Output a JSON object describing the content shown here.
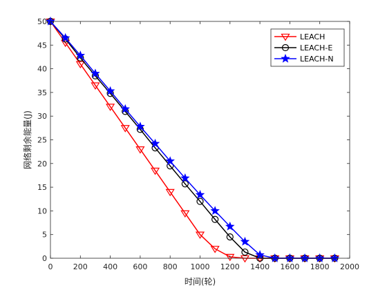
{
  "chart_data": {
    "type": "line",
    "title": "",
    "xlabel": "时间(轮)",
    "ylabel": "网络剩余能量(J)",
    "xlim": [
      0,
      2000
    ],
    "ylim": [
      0,
      50
    ],
    "xticks": [
      0,
      200,
      400,
      600,
      800,
      1000,
      1200,
      1400,
      1600,
      1800,
      2000
    ],
    "yticks": [
      0,
      5,
      10,
      15,
      20,
      25,
      30,
      35,
      40,
      45,
      50
    ],
    "grid": false,
    "legend_position": "top-right",
    "x": [
      0,
      100,
      200,
      300,
      400,
      500,
      600,
      700,
      800,
      900,
      1000,
      1100,
      1200,
      1300,
      1400,
      1500,
      1600,
      1700,
      1800,
      1900
    ],
    "series": [
      {
        "name": "LEACH",
        "color": "#ff0000",
        "marker": "triangle-down",
        "values": [
          50,
          45.5,
          41,
          36.5,
          32,
          27.5,
          23,
          18.5,
          14,
          9.5,
          5,
          2,
          0.3,
          0,
          0,
          0,
          0,
          0,
          0,
          0
        ]
      },
      {
        "name": "LEACH-E",
        "color": "#000000",
        "marker": "circle",
        "values": [
          50,
          46.3,
          42.3,
          38.5,
          34.8,
          31,
          27.2,
          23.3,
          19.5,
          15.7,
          12,
          8.2,
          4.5,
          1.3,
          0,
          0,
          0,
          0,
          0,
          0
        ]
      },
      {
        "name": "LEACH-N",
        "color": "#0000ff",
        "marker": "star",
        "values": [
          50,
          46.5,
          42.8,
          39,
          35.3,
          31.5,
          27.8,
          24.2,
          20.5,
          16.9,
          13.4,
          10,
          6.7,
          3.5,
          0.7,
          0,
          0,
          0,
          0,
          0
        ]
      }
    ]
  }
}
